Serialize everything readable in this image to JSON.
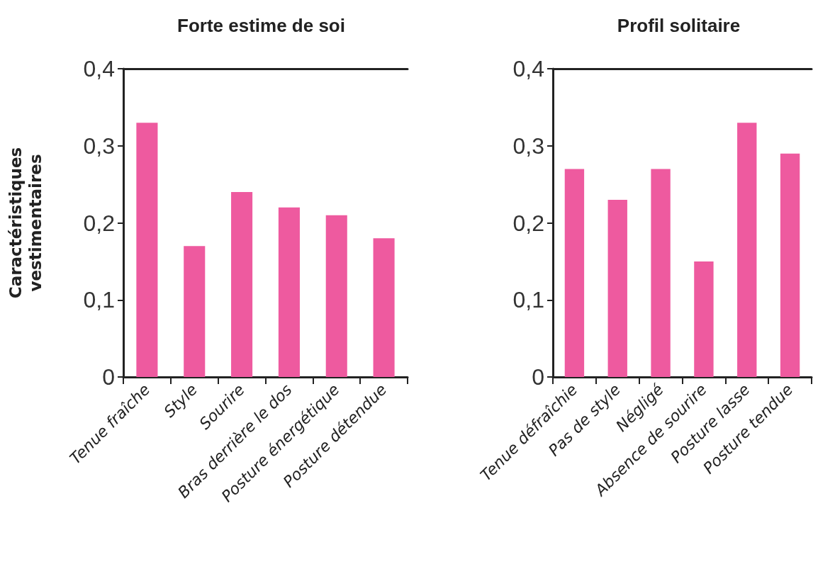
{
  "chart_data": [
    {
      "type": "bar",
      "title": "Forte estime de soi",
      "ylabel": "Caractéristiques\nvestimentaires",
      "categories": [
        "Tenue fraîche",
        "Style",
        "Sourire",
        "Bras derrière le dos",
        "Posture énergétique",
        "Posture détendue"
      ],
      "values": [
        0.33,
        0.17,
        0.24,
        0.22,
        0.21,
        0.18
      ],
      "color": "#ee5a9f",
      "ylim": [
        0,
        0.4
      ],
      "yticks": [
        {
          "value": 0,
          "label": "0"
        },
        {
          "value": 0.1,
          "label": "0,1"
        },
        {
          "value": 0.2,
          "label": "0,2"
        },
        {
          "value": 0.3,
          "label": "0,3"
        },
        {
          "value": 0.4,
          "label": "0,4"
        }
      ],
      "grid": false
    },
    {
      "type": "bar",
      "title": "Profil solitaire",
      "categories": [
        "Tenue défraîchie",
        "Pas de style",
        "Négligé",
        "Absence de sourire",
        "Posture lasse",
        "Posture tendue"
      ],
      "values": [
        0.27,
        0.23,
        0.27,
        0.15,
        0.33,
        0.29
      ],
      "color": "#ee5a9f",
      "ylim": [
        0,
        0.4
      ],
      "yticks": [
        {
          "value": 0,
          "label": "0"
        },
        {
          "value": 0.1,
          "label": "0,1"
        },
        {
          "value": 0.2,
          "label": "0,2"
        },
        {
          "value": 0.3,
          "label": "0,3"
        },
        {
          "value": 0.4,
          "label": "0,4"
        }
      ],
      "grid": false
    }
  ]
}
